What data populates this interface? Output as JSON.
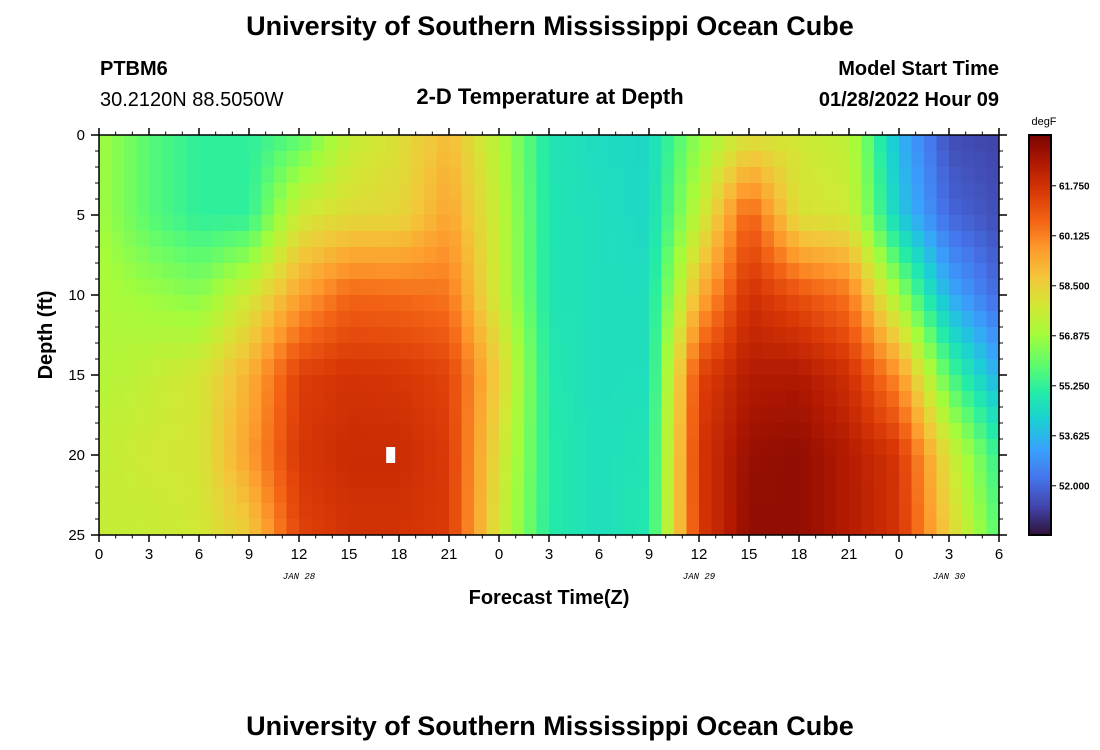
{
  "header": {
    "title": "University of Southern Mississippi Ocean Cube",
    "station": "PTBM6",
    "coords": "30.2120N  88.5050W",
    "chart_title": "2-D Temperature at Depth",
    "model_start_label": "Model Start Time",
    "model_start_value": "01/28/2022 Hour 09"
  },
  "footer": {
    "title": "University of Southern Mississippi Ocean Cube"
  },
  "colors": {
    "scale": [
      "#30123b",
      "#4145ab",
      "#4675ed",
      "#39a2fc",
      "#1bcfd4",
      "#24eca6",
      "#61fc6c",
      "#a4fc3b",
      "#d1e834",
      "#f3c63a",
      "#fe9b2d",
      "#f36315",
      "#d93806",
      "#b11901",
      "#7a0403"
    ]
  },
  "chart_data": {
    "type": "heatmap",
    "title": "2-D Temperature at Depth",
    "xlabel": "Forecast Time(Z)",
    "ylabel": "Depth (ft)",
    "x_ticks": [
      "0",
      "3",
      "6",
      "9",
      "12",
      "15",
      "18",
      "21",
      "0",
      "3",
      "6",
      "9",
      "12",
      "15",
      "18",
      "21",
      "0",
      "3",
      "6"
    ],
    "x_range_hours": [
      0,
      54
    ],
    "date_labels": [
      {
        "label": "JAN 28",
        "hour": 12
      },
      {
        "label": "JAN 29",
        "hour": 36
      },
      {
        "label": "JAN 30",
        "hour": 51
      }
    ],
    "y_ticks": [
      0,
      5,
      10,
      15,
      20,
      25
    ],
    "y_range_ft": [
      0,
      25
    ],
    "y_inverted": true,
    "colorbar": {
      "unit": "degF",
      "range": [
        50.4,
        63.4
      ],
      "labels": [
        "61.750",
        "60.125",
        "58.500",
        "56.875",
        "55.250",
        "53.625",
        "52.000"
      ]
    },
    "depth_levels_ft": [
      0,
      5,
      10,
      15,
      20,
      25
    ],
    "time_hours": [
      0,
      3,
      6,
      9,
      12,
      15,
      18,
      21,
      24,
      27,
      30,
      33,
      36,
      39,
      42,
      45,
      48,
      51,
      54
    ],
    "values_degF": [
      [
        56.9,
        55.8,
        55.2,
        55.2,
        55.8,
        57.5,
        58.1,
        59.0,
        57.2,
        54.8,
        54.5,
        54.4,
        56.7,
        58.0,
        57.8,
        57.4,
        53.6,
        51.5,
        51.3
      ],
      [
        56.9,
        55.8,
        55.2,
        55.2,
        57.8,
        58.2,
        58.3,
        59.5,
        57.5,
        54.8,
        54.6,
        54.4,
        57.5,
        60.8,
        58.0,
        57.8,
        54.0,
        52.0,
        51.5
      ],
      [
        57.1,
        56.8,
        56.5,
        57.8,
        59.5,
        60.6,
        60.5,
        60.3,
        57.6,
        54.8,
        54.6,
        54.6,
        59.2,
        61.8,
        61.0,
        60.3,
        56.8,
        53.4,
        52.0
      ],
      [
        57.2,
        57.5,
        57.9,
        59.2,
        61.4,
        61.7,
        61.6,
        61.3,
        58.5,
        54.9,
        54.6,
        54.6,
        61.3,
        62.4,
        62.5,
        61.8,
        59.8,
        55.7,
        53.4
      ],
      [
        57.5,
        57.8,
        57.9,
        59.6,
        61.6,
        61.9,
        61.9,
        61.5,
        58.0,
        55.0,
        54.6,
        54.8,
        61.6,
        62.9,
        63.0,
        62.4,
        61.6,
        57.9,
        55.2
      ],
      [
        57.6,
        57.6,
        57.8,
        58.6,
        61.3,
        61.7,
        61.7,
        61.5,
        57.8,
        55.0,
        54.6,
        54.9,
        61.5,
        63.0,
        63.0,
        62.4,
        61.7,
        58.5,
        55.7
      ]
    ],
    "annotations": [
      {
        "type": "marker",
        "hour": 17.5,
        "depth_ft": 20
      }
    ]
  }
}
